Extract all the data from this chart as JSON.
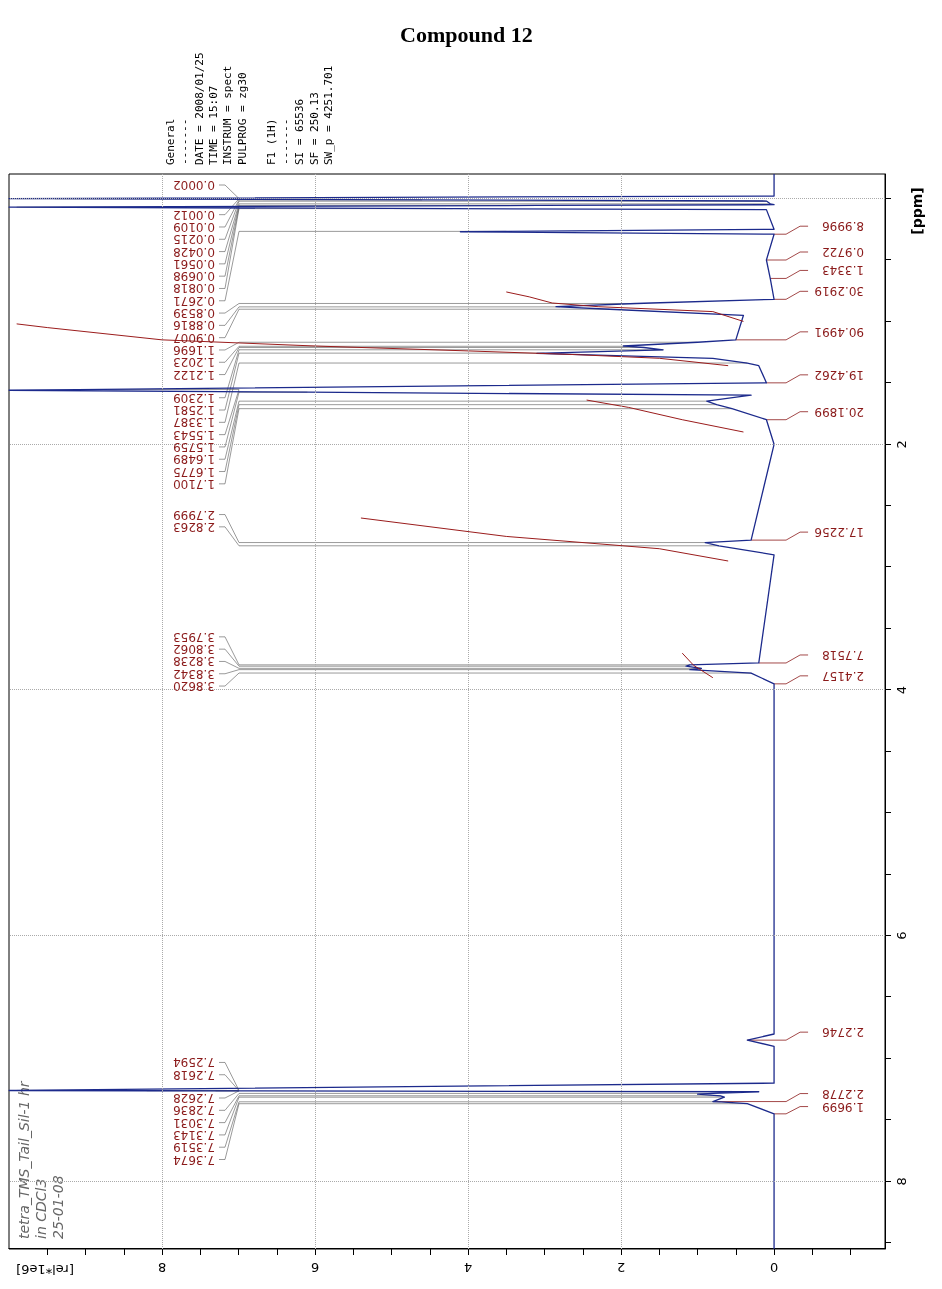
{
  "chart_data": {
    "type": "line",
    "title": "Compound 12",
    "xlabel": "[rel*1e6]",
    "ylabel": "[ppm]",
    "ylim": [
      8.55,
      -0.2
    ],
    "yticks": [
      {
        "value": 0,
        "label": null
      },
      {
        "value": 0.5,
        "label": null
      },
      {
        "value": 1,
        "label": null
      },
      {
        "value": 1.5,
        "label": null
      },
      2,
      {
        "value": 2.5,
        "label": null
      },
      {
        "value": 3,
        "label": null
      },
      {
        "value": 3.5,
        "label": null
      },
      4,
      {
        "value": 4.5,
        "label": null
      },
      {
        "value": 5,
        "label": null
      },
      {
        "value": 5.5,
        "label": null
      },
      6,
      {
        "value": 6.5,
        "label": null
      },
      {
        "value": 7,
        "label": null
      },
      {
        "value": 7.5,
        "label": null
      },
      8,
      {
        "value": 8.5,
        "label": null
      }
    ],
    "xlim": [
      10,
      -1.45
    ],
    "xticks": [
      {
        "value": -1,
        "label": null
      },
      {
        "value": -0.5,
        "label": null
      },
      0,
      {
        "value": 0.5,
        "label": null
      },
      {
        "value": 1,
        "label": null
      },
      {
        "value": 1.5,
        "label": null
      },
      2,
      {
        "value": 2.5,
        "label": null
      },
      {
        "value": 3,
        "label": null
      },
      {
        "value": 3.5,
        "label": null
      },
      4,
      {
        "value": 4.5,
        "label": null
      },
      {
        "value": 5,
        "label": null
      },
      {
        "value": 5.5,
        "label": null
      },
      6,
      {
        "value": 6.5,
        "label": null
      },
      {
        "value": 7,
        "label": null
      },
      {
        "value": 7.5,
        "label": null
      },
      8,
      {
        "value": 8.5,
        "label": null
      },
      {
        "value": 9,
        "label": null
      },
      {
        "value": 9.5,
        "label": null
      }
    ],
    "grid": true,
    "marker": "none",
    "line_style": "solid",
    "series": [
      {
        "color": "#1c2a8c",
        "values": [
          -0.2,
          -0.02,
          0.0,
          0.0002,
          0.0012,
          0.0109,
          0.02,
          0.0215,
          0.0428,
          0.05,
          0.0561,
          0.0698,
          0.07,
          0.0818,
          0.09,
          0.25,
          0.2671,
          0.27,
          0.29,
          0.5,
          0.65,
          0.82,
          0.85,
          0.8539,
          0.88,
          0.8816,
          0.9007,
          0.95,
          1.15,
          1.1696,
          1.2,
          1.2023,
          1.2122,
          1.2309,
          1.2581,
          1.26,
          1.3,
          1.3387,
          1.36,
          1.5,
          1.5543,
          1.56,
          1.5759,
          1.6,
          1.6489,
          1.6775,
          1.71,
          1.8,
          2.0,
          2.78,
          2.7999,
          2.8263,
          2.9,
          3.78,
          3.7953,
          3.8062,
          3.8238,
          3.8342,
          3.862,
          3.95,
          6.8,
          6.85,
          6.9,
          7.2,
          7.2594,
          7.26,
          7.2618,
          7.2628,
          7.27,
          7.2836,
          7.29,
          7.3031,
          7.3143,
          7.35,
          7.3519,
          7.3674,
          7.45,
          8.55
        ],
        "x": [
          0,
          0,
          10,
          9.9,
          9.4,
          4.6,
          0.1,
          0.1,
          0.05,
          0,
          3.1,
          9.9,
          10,
          4.2,
          0.1,
          0,
          3.5,
          4.1,
          0,
          0.1,
          0.05,
          0,
          1.6,
          1.8,
          2.85,
          2.8,
          2.15,
          0.4,
          0.5,
          1.0,
          1.97,
          1.9,
          1.7,
          1.45,
          3.0,
          3.1,
          0.8,
          0.35,
          0.2,
          0.1,
          9.1,
          10,
          6.1,
          0.3,
          0.88,
          0.75,
          0.55,
          0.1,
          0,
          0.3,
          0.9,
          0.72,
          0,
          0.2,
          1.1,
          1.15,
          0.95,
          1.1,
          0.3,
          0,
          0,
          0.35,
          0,
          0,
          9.9,
          10,
          8.2,
          7.3,
          0.2,
          0.8,
          1.0,
          0.7,
          0.65,
          0.8,
          0.7,
          0.35,
          0,
          0
        ]
      },
      {
        "color": "#9b1c1c",
        "values": [
          1.0,
          0.92,
          0.88,
          0.85,
          0.8,
          0.76
        ],
        "x": [
          0.4,
          0.8,
          2.3,
          2.9,
          3.2,
          3.5
        ]
      },
      {
        "color": "#9b1c1c",
        "values": [
          1.36,
          1.3,
          1.27,
          1.24,
          1.2,
          1.15,
          1.05,
          1.02
        ],
        "x": [
          0.6,
          1.5,
          2.6,
          4.0,
          6.0,
          8.0,
          9.5,
          9.9
        ]
      },
      {
        "color": "#9b1c1c",
        "values": [
          1.9,
          1.8,
          1.7,
          1.64
        ],
        "x": [
          0.4,
          1.2,
          1.9,
          2.45
        ]
      },
      {
        "color": "#9b1c1c",
        "values": [
          2.95,
          2.85,
          2.75,
          2.6
        ],
        "x": [
          0.6,
          1.5,
          3.5,
          5.4
        ]
      },
      {
        "color": "#9b1c1c",
        "values": [
          3.9,
          3.8,
          3.7
        ],
        "x": [
          0.8,
          1.05,
          1.2
        ]
      }
    ],
    "annotations": [
      "General\n-------\nDATE = 2008/01/25\nTIME = 15:07\nINSTRUM = spect\nPULPROG = zg30\n\nF1 (1H)\n-------\nSI = 65536\nSF = 250.13\nSW_p = 4251.701",
      "tetra_TMS_Tail_Sil-1 hr\nin CDCl3\n25-01-08",
      {
        "text": "0.0002",
        "x": 9.9,
        "y": 0.0002
      },
      {
        "text": "0.0012",
        "x": 9.4,
        "y": 0.0012
      },
      {
        "text": "0.0109",
        "x": 4.6,
        "y": 0.0109
      },
      {
        "text": "0.0215",
        "x": 0.1,
        "y": 0.0215
      },
      {
        "text": "0.0428",
        "x": 0.05,
        "y": 0.0428
      },
      {
        "text": "0.0561",
        "x": 3.1,
        "y": 0.0561
      },
      {
        "text": "0.0698",
        "x": 9.9,
        "y": 0.0698
      },
      {
        "text": "0.0818",
        "x": 4.2,
        "y": 0.0818
      },
      {
        "text": "0.2671",
        "x": 3.5,
        "y": 0.2671
      },
      {
        "text": "0.8539",
        "x": 1.8,
        "y": 0.8539
      },
      {
        "text": "0.8816",
        "x": 2.8,
        "y": 0.8816
      },
      {
        "text": "0.9007",
        "x": 2.15,
        "y": 0.9007
      },
      {
        "text": "1.1696",
        "x": 1.0,
        "y": 1.1696
      },
      {
        "text": "1.2023",
        "x": 1.9,
        "y": 1.2023
      },
      {
        "text": "1.2122",
        "x": 1.7,
        "y": 1.2122
      },
      {
        "text": "1.2309",
        "x": 1.45,
        "y": 1.2309
      },
      {
        "text": "1.2581",
        "x": 3.0,
        "y": 1.2581
      },
      {
        "text": "1.3387",
        "x": 0.35,
        "y": 1.3387
      },
      {
        "text": "1.5543",
        "x": 9.1,
        "y": 1.5543
      },
      {
        "text": "1.5759",
        "x": 6.1,
        "y": 1.5759
      },
      {
        "text": "1.6489",
        "x": 0.88,
        "y": 1.6489
      },
      {
        "text": "1.6775",
        "x": 0.75,
        "y": 1.6775
      },
      {
        "text": "1.7100",
        "x": 0.55,
        "y": 1.71
      },
      {
        "text": "2.7999",
        "x": 0.9,
        "y": 2.7999
      },
      {
        "text": "2.8263",
        "x": 0.72,
        "y": 2.8263
      },
      {
        "text": "3.7953",
        "x": 1.1,
        "y": 3.7953
      },
      {
        "text": "3.8062",
        "x": 1.15,
        "y": 3.8062
      },
      {
        "text": "3.8238",
        "x": 0.95,
        "y": 3.8238
      },
      {
        "text": "3.8342",
        "x": 1.1,
        "y": 3.8342
      },
      {
        "text": "3.8620",
        "x": 0.3,
        "y": 3.862
      },
      {
        "text": "7.2594",
        "x": 9.9,
        "y": 7.2594
      },
      {
        "text": "7.2618",
        "x": 8.2,
        "y": 7.2618
      },
      {
        "text": "7.2628",
        "x": 7.3,
        "y": 7.2628
      },
      {
        "text": "7.2836",
        "x": 0.8,
        "y": 7.2836
      },
      {
        "text": "7.3031",
        "x": 0.7,
        "y": 7.3031
      },
      {
        "text": "7.3143",
        "x": 0.65,
        "y": 7.3143
      },
      {
        "text": "7.3519",
        "x": 0.7,
        "y": 7.3519
      },
      {
        "text": "7.3674",
        "x": 0.35,
        "y": 7.3674
      },
      {
        "text": "8.9996",
        "x": 0,
        "y": 0.29
      },
      {
        "text": "0.9722",
        "x": 0.1,
        "y": 0.5
      },
      {
        "text": "1.3343",
        "x": 0.05,
        "y": 0.65
      },
      {
        "text": "30.2919",
        "x": 0,
        "y": 0.82
      },
      {
        "text": "90.4991",
        "x": 0.5,
        "y": 1.15
      },
      {
        "text": "19.4262",
        "x": 0.1,
        "y": 1.5
      },
      {
        "text": "20.1899",
        "x": 0.1,
        "y": 1.8
      },
      {
        "text": "17.2256",
        "x": 0.3,
        "y": 2.78
      },
      {
        "text": "7.7518",
        "x": 0.2,
        "y": 3.78
      },
      {
        "text": "2.4157",
        "x": 0,
        "y": 3.95
      },
      {
        "text": "2.2746",
        "x": 0.35,
        "y": 6.85
      },
      {
        "text": "2.2778",
        "x": 0.8,
        "y": 7.35
      },
      {
        "text": "1.9699",
        "x": 0,
        "y": 7.45
      }
    ]
  }
}
